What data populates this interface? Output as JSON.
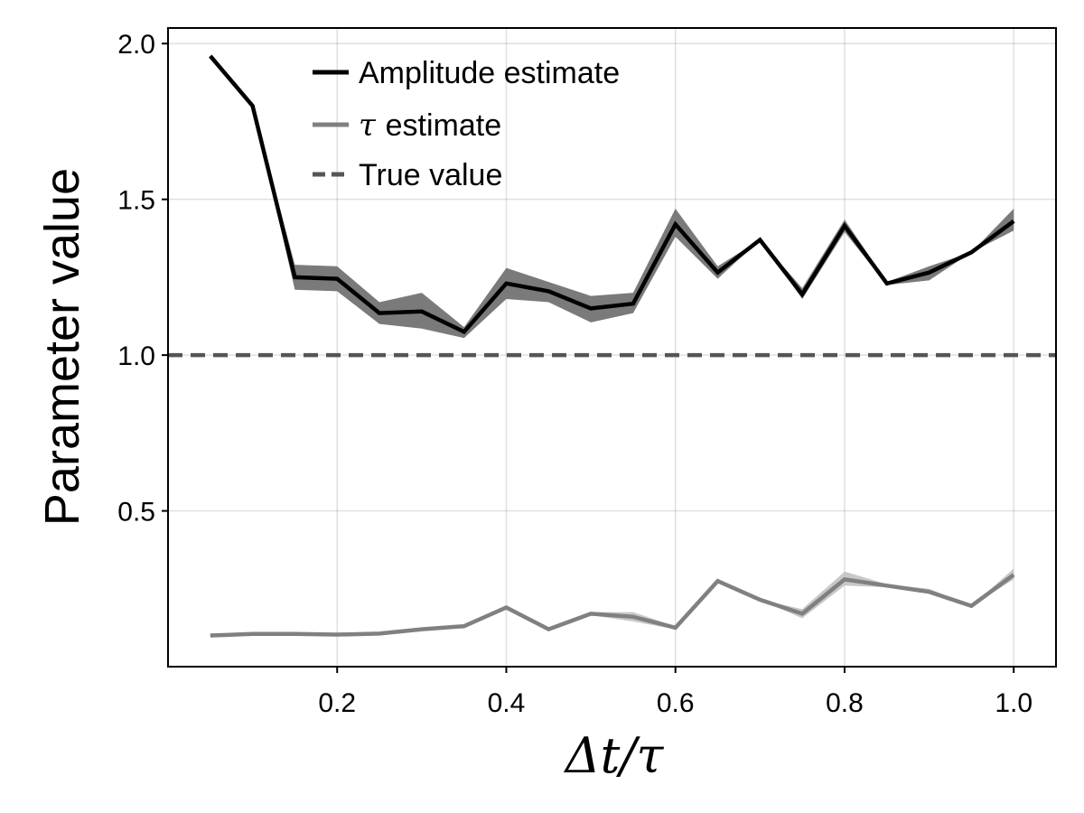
{
  "chart_data": {
    "type": "line",
    "xlabel": "Δt/τ",
    "ylabel": "Parameter value",
    "xlim": [
      0.0,
      1.05
    ],
    "ylim": [
      0.0,
      2.05
    ],
    "xticks": [
      0.2,
      0.4,
      0.6,
      0.8,
      1.0
    ],
    "xtick_labels": [
      "0.2",
      "0.4",
      "0.6",
      "0.8",
      "1.0"
    ],
    "yticks": [
      0.5,
      1.0,
      1.5,
      2.0
    ],
    "ytick_labels": [
      "0.5",
      "1.0",
      "1.5",
      "2.0"
    ],
    "grid": true,
    "legend_position": "top-left (inside)",
    "x": [
      0.05,
      0.1,
      0.15,
      0.2,
      0.25,
      0.3,
      0.35,
      0.4,
      0.45,
      0.5,
      0.55,
      0.6,
      0.65,
      0.7,
      0.75,
      0.8,
      0.85,
      0.9,
      0.95,
      1.0
    ],
    "series": [
      {
        "name": "Amplitude estimate",
        "color": "#000000",
        "band_color": "#7a7a7a",
        "values": [
          1.96,
          1.8,
          1.25,
          1.245,
          1.135,
          1.14,
          1.075,
          1.23,
          1.205,
          1.15,
          1.165,
          1.42,
          1.265,
          1.37,
          1.195,
          1.415,
          1.23,
          1.265,
          1.33,
          1.43
        ],
        "lower": [
          1.96,
          1.8,
          1.21,
          1.205,
          1.1,
          1.085,
          1.055,
          1.18,
          1.17,
          1.105,
          1.135,
          1.38,
          1.245,
          1.37,
          1.18,
          1.395,
          1.225,
          1.24,
          1.33,
          1.4
        ],
        "upper": [
          1.96,
          1.8,
          1.29,
          1.285,
          1.17,
          1.2,
          1.09,
          1.28,
          1.235,
          1.19,
          1.2,
          1.47,
          1.285,
          1.37,
          1.215,
          1.435,
          1.235,
          1.285,
          1.33,
          1.47
        ]
      },
      {
        "name": "estimate",
        "color": "#808080",
        "band_color": "#c8c8c8",
        "values": [
          0.1,
          0.105,
          0.105,
          0.103,
          0.106,
          0.12,
          0.13,
          0.19,
          0.12,
          0.17,
          0.16,
          0.125,
          0.275,
          0.215,
          0.17,
          0.28,
          0.26,
          0.24,
          0.195,
          0.295
        ],
        "lower": [
          0.1,
          0.105,
          0.105,
          0.103,
          0.106,
          0.12,
          0.13,
          0.19,
          0.12,
          0.165,
          0.145,
          0.12,
          0.27,
          0.215,
          0.155,
          0.26,
          0.255,
          0.235,
          0.195,
          0.28
        ],
        "upper": [
          0.1,
          0.105,
          0.105,
          0.103,
          0.106,
          0.12,
          0.13,
          0.19,
          0.12,
          0.175,
          0.175,
          0.13,
          0.28,
          0.215,
          0.185,
          0.305,
          0.265,
          0.25,
          0.195,
          0.315
        ]
      }
    ],
    "reference_line": {
      "name": "True value",
      "y": 1.0,
      "color": "#555555"
    },
    "legend": [
      {
        "symbol": "",
        "label": "Amplitude estimate"
      },
      {
        "symbol": "τ",
        "label": "estimate"
      },
      {
        "symbol": "",
        "label": "True value"
      }
    ]
  }
}
